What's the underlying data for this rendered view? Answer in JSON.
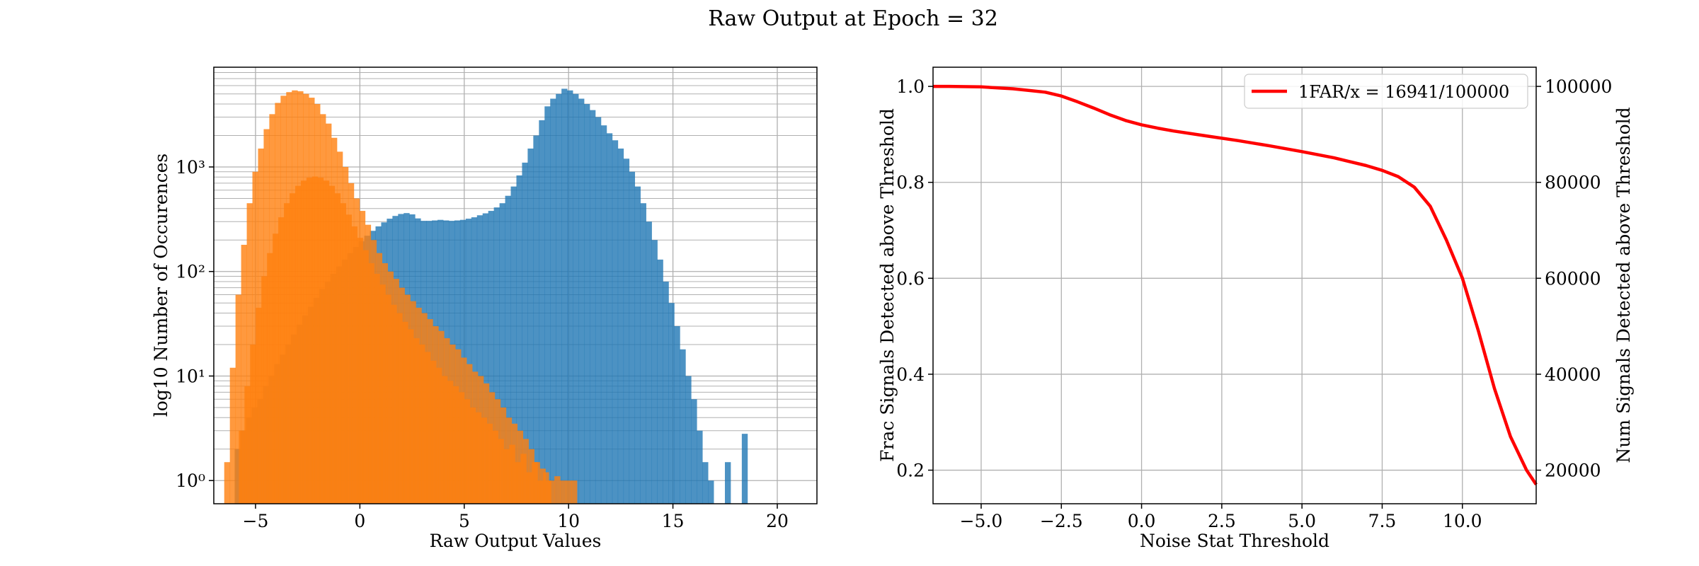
{
  "figure": {
    "title": "Raw Output at Epoch = 32"
  },
  "colors": {
    "signal": "#1f77b4",
    "noise": "#ff7f0e",
    "curve": "#ff0000",
    "grid": "#b0b0b0"
  },
  "chart_data": [
    {
      "type": "bar",
      "subtype": "histogram",
      "title": "",
      "xlabel": "Raw Output Values",
      "ylabel": "log10 Number of Occurences",
      "xlim": [
        -7.0,
        21.9
      ],
      "ylim": [
        0.6,
        9000
      ],
      "yscale": "log",
      "grid": true,
      "legend": "none",
      "xticks": [
        "−5",
        "0",
        "5",
        "10",
        "15",
        "20"
      ],
      "xtick_values": [
        -5,
        0,
        5,
        10,
        15,
        20
      ],
      "yticks": [
        "10⁰",
        "10¹",
        "10²",
        "10³"
      ],
      "ytick_values": [
        1,
        10,
        100,
        1000
      ],
      "bin_width": 0.27,
      "series": [
        {
          "key": "signal",
          "color": "#1f77b4",
          "opacity": 0.8,
          "x0": -6.0,
          "counts": [
            2,
            3,
            4,
            5,
            6,
            8,
            10,
            13,
            16,
            20,
            25,
            31,
            38,
            46,
            56,
            68,
            80,
            95,
            112,
            130,
            150,
            172,
            195,
            220,
            245,
            270,
            295,
            320,
            340,
            355,
            362,
            352,
            322,
            305,
            305,
            308,
            312,
            308,
            305,
            308,
            312,
            320,
            330,
            345,
            360,
            380,
            410,
            450,
            530,
            650,
            830,
            1100,
            1500,
            2000,
            2800,
            3800,
            4500,
            5000,
            5600,
            5400,
            5000,
            4500,
            4000,
            3500,
            3000,
            2500,
            2100,
            1800,
            1500,
            1200,
            900,
            650,
            450,
            300,
            200,
            130,
            80,
            50,
            30,
            18,
            10,
            6,
            3,
            1.5,
            1,
            0,
            0,
            1.5,
            0,
            0,
            2.8
          ]
        },
        {
          "key": "noise",
          "color": "#ff7f0e",
          "opacity": 0.8,
          "x0": -6.5,
          "counts": [
            1.5,
            12,
            60,
            180,
            450,
            900,
            1500,
            2300,
            3200,
            4100,
            4800,
            5200,
            5400,
            5300,
            5000,
            4600,
            4000,
            3200,
            2600,
            1900,
            1400,
            1000,
            700,
            500,
            380,
            280,
            200,
            150,
            120,
            100,
            85,
            70,
            60,
            52,
            45,
            40,
            35,
            30,
            27,
            23,
            20,
            18,
            15,
            13,
            11,
            10,
            8.5,
            7,
            6,
            5,
            4,
            3.5,
            3,
            2.5,
            2,
            1.5,
            1.3,
            1
          ]
        },
        {
          "key": "noise-shifted",
          "color": "#ff7f0e",
          "opacity": 0.8,
          "x0": -5.8,
          "counts": [
            3,
            8,
            20,
            45,
            90,
            150,
            230,
            330,
            450,
            560,
            660,
            740,
            790,
            810,
            790,
            740,
            660,
            560,
            450,
            350,
            270,
            210,
            160,
            120,
            95,
            75,
            60,
            48,
            40,
            33,
            28,
            23,
            20,
            17,
            14,
            12,
            10,
            9,
            8,
            7,
            6,
            5,
            4.5,
            4,
            3.5,
            3,
            2.5,
            2,
            2.2,
            1.5,
            1.8,
            1.2,
            1.5,
            1,
            1.2,
            1,
            1.1,
            1,
            1,
            1
          ]
        }
      ]
    },
    {
      "type": "line",
      "title": "",
      "xlabel": "Noise Stat Threshold",
      "ylabel": "Frac Signals Detected above Threshold",
      "ylabel_right": "Num Signals Detected above Threshold",
      "xlim": [
        -6.5,
        12.3
      ],
      "ylim": [
        0.13,
        1.04
      ],
      "ylim_right": [
        13000,
        104000
      ],
      "grid": true,
      "legend": "top-right",
      "xticks": [
        "−5.0",
        "−2.5",
        "0.0",
        "2.5",
        "5.0",
        "7.5",
        "10.0"
      ],
      "xtick_values": [
        -5.0,
        -2.5,
        0.0,
        2.5,
        5.0,
        7.5,
        10.0
      ],
      "yticks": [
        "0.2",
        "0.4",
        "0.6",
        "0.8",
        "1.0"
      ],
      "ytick_values": [
        0.2,
        0.4,
        0.6,
        0.8,
        1.0
      ],
      "yticks_right": [
        "20000",
        "40000",
        "60000",
        "80000",
        "100000"
      ],
      "ytick_values_right": [
        20000,
        40000,
        60000,
        80000,
        100000
      ],
      "series": [
        {
          "name": "1FAR/x = 16941/100000",
          "color": "#ff0000",
          "x": [
            -6.5,
            -6.0,
            -5.0,
            -4.0,
            -3.0,
            -2.5,
            -2.0,
            -1.5,
            -1.0,
            -0.5,
            0.0,
            0.5,
            1.0,
            2.0,
            3.0,
            4.0,
            5.0,
            6.0,
            7.0,
            7.5,
            8.0,
            8.5,
            9.0,
            9.5,
            10.0,
            10.5,
            11.0,
            11.5,
            12.0,
            12.3
          ],
          "y": [
            1.0,
            1.0,
            0.999,
            0.995,
            0.988,
            0.98,
            0.968,
            0.955,
            0.941,
            0.929,
            0.92,
            0.913,
            0.907,
            0.897,
            0.887,
            0.876,
            0.864,
            0.851,
            0.835,
            0.825,
            0.812,
            0.79,
            0.75,
            0.68,
            0.6,
            0.49,
            0.37,
            0.27,
            0.2,
            0.17
          ]
        }
      ]
    }
  ]
}
